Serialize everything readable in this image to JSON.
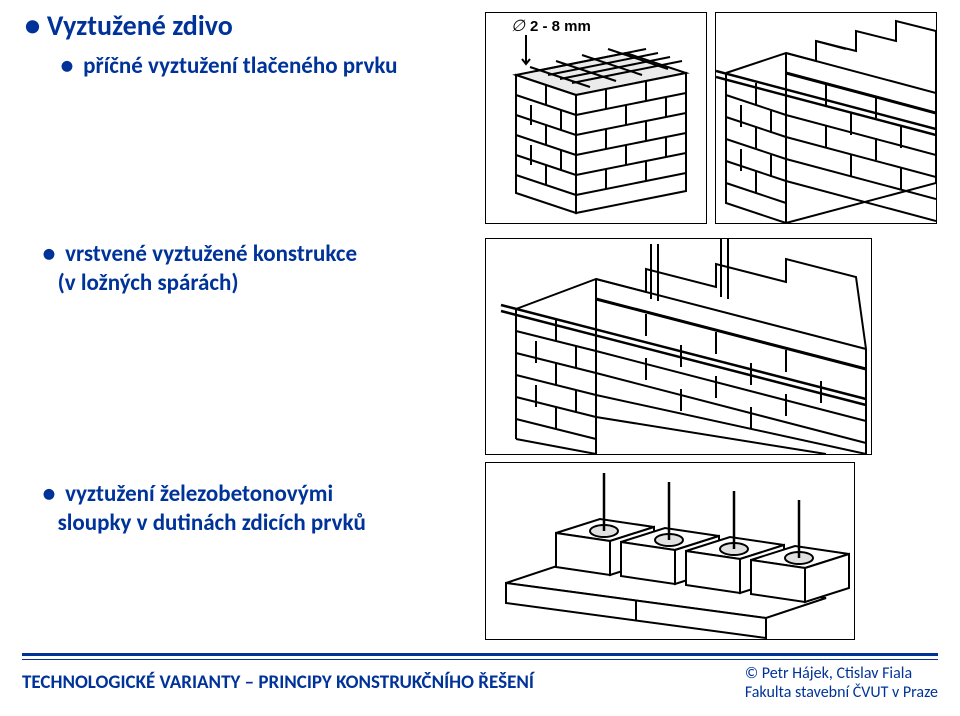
{
  "title": "Vyztužené zdivo",
  "sub1": "příčné vyztužení tlačeného prvku",
  "sub2_line1": "vrstvené vyztužené konstrukce",
  "sub2_line2": "(v ložných spárách)",
  "sub3_line1": "vyztužení železobetonovými",
  "sub3_line2": "sloupky v dutinách zdicích prvků",
  "footer_left": "TECHNOLOGICKÉ VARIANTY – PRINCIPY KONSTRUKČNÍHO ŘEŠENÍ",
  "footer_r1": "© Petr Hájek, Ctislav Fiala",
  "footer_r2": "Fakulta stavební ČVUT v Praze",
  "bullet": "●",
  "dim_label": "2 - 8 mm",
  "phi": "∅",
  "colors": {
    "text": "#003399",
    "line": "#000000",
    "bg": "#ffffff"
  },
  "style": {
    "title_fontsize": 28,
    "sub_fontsize": 23,
    "footer_left_fontsize": 19,
    "footer_right_fontsize": 16,
    "font_family": "Calibri, Arial, sans-serif",
    "svg_stroke_width": 2
  },
  "fig_a": {
    "type": "axon-brick-pier",
    "rows": 6,
    "top_mesh": true
  },
  "fig_b": {
    "type": "axon-wall-with-bed-reinforcement",
    "courses": 6
  },
  "fig_c": {
    "type": "axon-layered-wall-reinforced",
    "courses": 6,
    "rods": 3
  },
  "fig_d": {
    "type": "hollow-blocks-with-columns",
    "blocks": 4,
    "rods_per_block": 1
  }
}
